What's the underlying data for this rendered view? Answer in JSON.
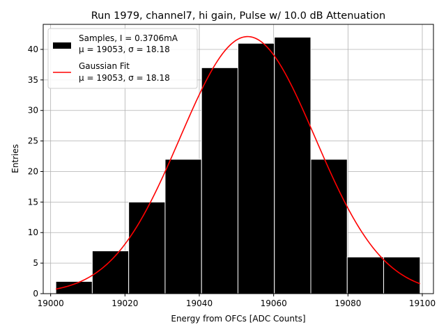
{
  "chart_data": {
    "type": "bar",
    "title": "Run 1979, channel7, hi gain, Pulse w/ 10.0 dB Attenuation",
    "xlabel": "Energy from OFCs [ADC Counts]",
    "ylabel": "Entries",
    "xlim": [
      18998,
      19103
    ],
    "ylim": [
      0,
      44.1
    ],
    "grid": true,
    "legend_position": "top-left",
    "xticks": [
      19000,
      19020,
      19040,
      19060,
      19080,
      19100
    ],
    "yticks": [
      0,
      5,
      10,
      15,
      20,
      25,
      30,
      35,
      40
    ],
    "bins": {
      "edges": [
        19001.4,
        19011.2,
        19021.0,
        19030.8,
        19040.6,
        19050.4,
        19060.2,
        19070.0,
        19079.8,
        19089.6,
        19099.4
      ],
      "counts": [
        2,
        7,
        15,
        22,
        37,
        41,
        42,
        22,
        6,
        6
      ]
    },
    "fit": {
      "name": "Gaussian Fit",
      "mu": 19053,
      "sigma": 18.18,
      "amplitude": 42.1,
      "x_range": [
        19001.4,
        19099.4
      ]
    },
    "legend": [
      {
        "key": "samples",
        "line1": "Samples, I = 0.3706mA",
        "line2": "μ = 19053, σ = 18.18"
      },
      {
        "key": "fit",
        "line1": "Gaussian Fit",
        "line2": "μ = 19053, σ = 18.18"
      }
    ],
    "colors": {
      "bars": "#000000",
      "bar_edge": "#ffffff",
      "fit": "#ff0000",
      "grid": "#b0b0b0"
    }
  }
}
